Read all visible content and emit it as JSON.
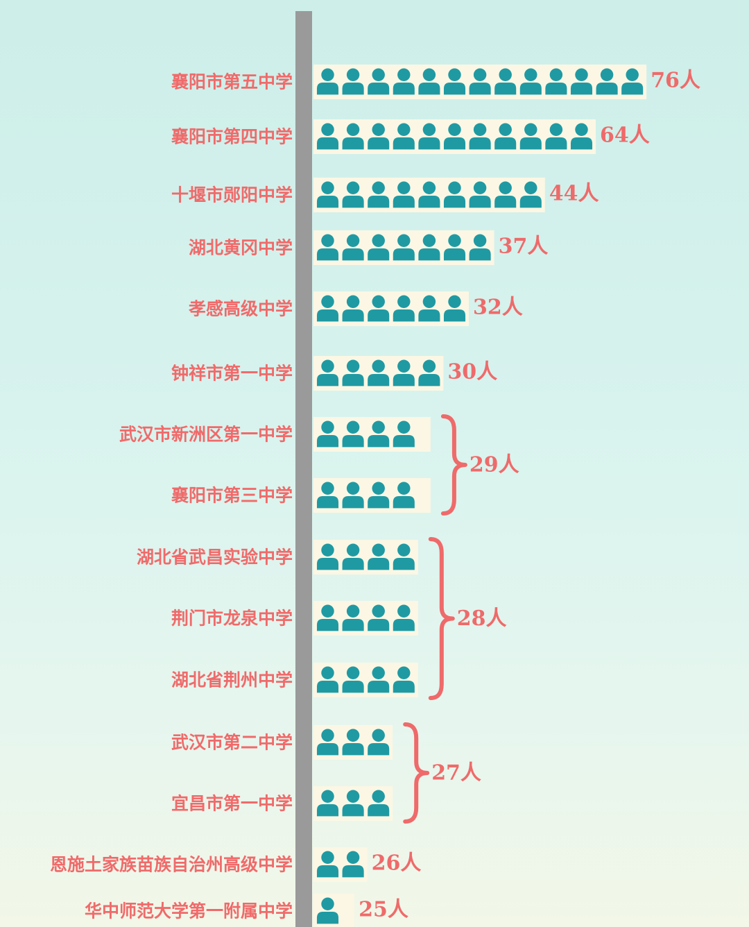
{
  "colors": {
    "label": "#f06a6a",
    "icon": "#1f9aa3",
    "axis": "#9a9a9a",
    "strip": "#fbf7e4"
  },
  "icon_name": "person-icon",
  "chart_data": {
    "type": "bar",
    "title": "",
    "xlabel": "",
    "ylabel": "",
    "orientation": "horizontal",
    "categories": [
      "襄阳市第五中学",
      "襄阳市第四中学",
      "十堰市郧阳中学",
      "湖北黄冈中学",
      "孝感高级中学",
      "钟祥市第一中学",
      "武汉市新洲区第一中学",
      "襄阳市第三中学",
      "湖北省武昌实验中学",
      "荆门市龙泉中学",
      "湖北省荆州中学",
      "武汉市第二中学",
      "宜昌市第一中学",
      "恩施土家族苗族自治州高级中学",
      "华中师范大学第一附属中学"
    ],
    "values": [
      76,
      64,
      44,
      37,
      32,
      30,
      29,
      29,
      28,
      28,
      28,
      27,
      27,
      26,
      25
    ],
    "icons": [
      13,
      11,
      9,
      7,
      6,
      5,
      4.5,
      4.5,
      4,
      4,
      4,
      3,
      3,
      2,
      1.5
    ],
    "value_labels": [
      {
        "text": "76人",
        "rows": [
          0
        ]
      },
      {
        "text": "64人",
        "rows": [
          1
        ]
      },
      {
        "text": "44人",
        "rows": [
          2
        ]
      },
      {
        "text": "37人",
        "rows": [
          3
        ]
      },
      {
        "text": "32人",
        "rows": [
          4
        ]
      },
      {
        "text": "30人",
        "rows": [
          5
        ]
      },
      {
        "text": "29人",
        "rows": [
          6,
          7
        ]
      },
      {
        "text": "28人",
        "rows": [
          8,
          9,
          10
        ]
      },
      {
        "text": "27人",
        "rows": [
          11,
          12
        ]
      },
      {
        "text": "26人",
        "rows": [
          13
        ]
      },
      {
        "text": "25人",
        "rows": [
          14
        ]
      }
    ]
  }
}
